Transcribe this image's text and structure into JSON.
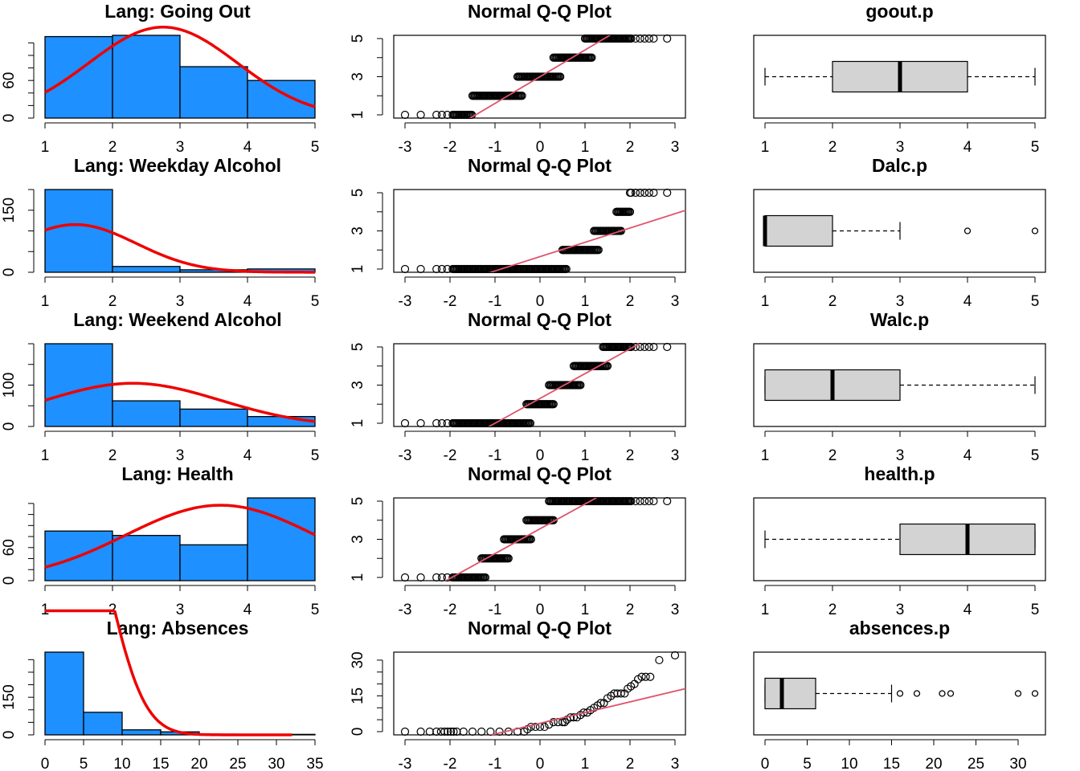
{
  "colors": {
    "hist_fill": "#1E90FF",
    "density_curve": "#EE0000",
    "qq_line": "#DF536B",
    "box_fill": "#D3D3D3"
  },
  "chart_data": [
    {
      "type": "bar",
      "title": "Lang: Going Out",
      "categories": [
        "1-2",
        "2-3",
        "3-4",
        "4-5"
      ],
      "bins": [
        1,
        2,
        3,
        4,
        5
      ],
      "values": [
        130,
        132,
        82,
        60
      ],
      "xlim": [
        1,
        5
      ],
      "ylim": [
        0,
        132
      ],
      "xticks": [
        "1",
        "2",
        "3",
        "4",
        "5"
      ],
      "yticks": [
        "0",
        "60"
      ],
      "density_curve": {
        "mean": 2.75,
        "sd": 1.1,
        "n": 400
      }
    },
    {
      "type": "scatter",
      "title": "Normal Q-Q Plot",
      "x_range": [
        -3,
        3
      ],
      "ylim": [
        1,
        5
      ],
      "xticks": [
        "-3",
        "-2",
        "-1",
        "0",
        "1",
        "2",
        "3"
      ],
      "yticks": [
        "1",
        "3",
        "5"
      ],
      "value_levels": [
        1,
        2,
        3,
        4,
        5
      ],
      "level_z_ranges": [
        [
          -3.0,
          -1.5
        ],
        [
          -1.5,
          -0.4
        ],
        [
          -0.5,
          0.45
        ],
        [
          0.3,
          1.15
        ],
        [
          1.0,
          3.0
        ]
      ],
      "reference_line": {
        "intercept": 3.0,
        "slope": 1.4
      }
    },
    {
      "type": "box",
      "title": "goout.p",
      "xlim": [
        1,
        5
      ],
      "xticks": [
        "1",
        "2",
        "3",
        "4",
        "5"
      ],
      "whisker_low": 1,
      "q1": 2,
      "median": 3,
      "q3": 4,
      "whisker_high": 5,
      "outliers": []
    },
    {
      "type": "bar",
      "title": "Lang: Weekday Alcohol",
      "categories": [
        "1-2",
        "2-3",
        "3-4",
        "4-5"
      ],
      "bins": [
        1,
        2,
        3,
        4,
        5
      ],
      "values": [
        200,
        14,
        6,
        8
      ],
      "xlim": [
        1,
        5
      ],
      "ylim": [
        0,
        200
      ],
      "xticks": [
        "1",
        "2",
        "3",
        "4",
        "5"
      ],
      "yticks": [
        "0",
        "150"
      ],
      "density_curve": {
        "mean": 1.45,
        "sd": 0.9,
        "n": 260
      }
    },
    {
      "type": "scatter",
      "title": "Normal Q-Q Plot",
      "x_range": [
        -3,
        3
      ],
      "ylim": [
        1,
        5
      ],
      "xticks": [
        "-3",
        "-2",
        "-1",
        "0",
        "1",
        "2",
        "3"
      ],
      "yticks": [
        "1",
        "3",
        "5"
      ],
      "value_levels": [
        1,
        2,
        3,
        4,
        5
      ],
      "level_z_ranges": [
        [
          -3.0,
          0.6
        ],
        [
          0.5,
          1.3
        ],
        [
          1.2,
          1.8
        ],
        [
          1.7,
          2.0
        ],
        [
          2.0,
          3.0
        ]
      ],
      "reference_line": {
        "intercept": 1.65,
        "slope": 0.75
      }
    },
    {
      "type": "box",
      "title": "Dalc.p",
      "xlim": [
        1,
        5
      ],
      "xticks": [
        "1",
        "2",
        "3",
        "4",
        "5"
      ],
      "whisker_low": 1,
      "q1": 1,
      "median": 1,
      "q3": 2,
      "whisker_high": 3,
      "outliers": [
        4,
        5
      ]
    },
    {
      "type": "bar",
      "title": "Lang: Weekend Alcohol",
      "categories": [
        "1-2",
        "2-3",
        "3-4",
        "4-5"
      ],
      "bins": [
        1,
        2,
        3,
        4,
        5
      ],
      "values": [
        200,
        62,
        42,
        24
      ],
      "xlim": [
        1,
        5
      ],
      "ylim": [
        0,
        200
      ],
      "xticks": [
        "1",
        "2",
        "3",
        "4",
        "5"
      ],
      "yticks": [
        "0",
        "100"
      ],
      "density_curve": {
        "mean": 2.3,
        "sd": 1.3,
        "n": 340
      }
    },
    {
      "type": "scatter",
      "title": "Normal Q-Q Plot",
      "x_range": [
        -3,
        3
      ],
      "ylim": [
        1,
        5
      ],
      "xticks": [
        "-3",
        "-2",
        "-1",
        "0",
        "1",
        "2",
        "3"
      ],
      "yticks": [
        "1",
        "3",
        "5"
      ],
      "value_levels": [
        1,
        2,
        3,
        4,
        5
      ],
      "level_z_ranges": [
        [
          -3.0,
          -0.2
        ],
        [
          -0.3,
          0.3
        ],
        [
          0.2,
          0.9
        ],
        [
          0.75,
          1.5
        ],
        [
          1.4,
          3.0
        ]
      ],
      "reference_line": {
        "intercept": 2.3,
        "slope": 1.3
      }
    },
    {
      "type": "box",
      "title": "Walc.p",
      "xlim": [
        1,
        5
      ],
      "xticks": [
        "1",
        "2",
        "3",
        "4",
        "5"
      ],
      "whisker_low": 1,
      "q1": 1,
      "median": 2,
      "q3": 3,
      "whisker_high": 5,
      "outliers": []
    },
    {
      "type": "bar",
      "title": "Lang: Health",
      "categories": [
        "1-2",
        "2-3",
        "3-4",
        "4-5"
      ],
      "bins": [
        1,
        2,
        3,
        4,
        5
      ],
      "values": [
        90,
        82,
        65,
        150
      ],
      "xlim": [
        1,
        5
      ],
      "ylim": [
        0,
        150
      ],
      "xticks": [
        "1",
        "2",
        "3",
        "4",
        "5"
      ],
      "yticks": [
        "0",
        "60"
      ],
      "density_curve": {
        "mean": 3.6,
        "sd": 1.4,
        "n": 480
      }
    },
    {
      "type": "scatter",
      "title": "Normal Q-Q Plot",
      "x_range": [
        -3,
        3
      ],
      "ylim": [
        1,
        5
      ],
      "xticks": [
        "-3",
        "-2",
        "-1",
        "0",
        "1",
        "2",
        "3"
      ],
      "yticks": [
        "1",
        "3",
        "5"
      ],
      "value_levels": [
        1,
        2,
        3,
        4,
        5
      ],
      "level_z_ranges": [
        [
          -3.0,
          -1.2
        ],
        [
          -1.3,
          -0.7
        ],
        [
          -0.8,
          -0.2
        ],
        [
          -0.3,
          0.3
        ],
        [
          0.2,
          3.0
        ]
      ],
      "reference_line": {
        "intercept": 3.55,
        "slope": 1.3
      }
    },
    {
      "type": "box",
      "title": "health.p",
      "xlim": [
        1,
        5
      ],
      "xticks": [
        "1",
        "2",
        "3",
        "4",
        "5"
      ],
      "whisker_low": 1,
      "q1": 3,
      "median": 4,
      "q3": 5,
      "whisker_high": 5,
      "outliers": []
    },
    {
      "type": "bar",
      "title": "Lang: Absences",
      "categories": [
        "0-5",
        "5-10",
        "10-15",
        "15-20",
        "20-25",
        "25-30",
        "30-35"
      ],
      "bins": [
        0,
        5,
        10,
        15,
        20,
        25,
        30,
        35
      ],
      "values": [
        330,
        90,
        20,
        12,
        3,
        1,
        2
      ],
      "xlim": [
        0,
        35
      ],
      "ylim": [
        0,
        330
      ],
      "xticks": [
        "0",
        "5",
        "10",
        "15",
        "20",
        "25",
        "30",
        "35"
      ],
      "yticks": [
        "0",
        "150"
      ],
      "density_curve": {
        "mean": 3.6,
        "sd": 4.6,
        "n": 2300,
        "x_max": 32
      }
    },
    {
      "type": "scatter",
      "title": "Normal Q-Q Plot",
      "x_range": [
        -3,
        3
      ],
      "ylim": [
        0,
        32
      ],
      "xticks": [
        "-3",
        "-2",
        "-1",
        "0",
        "1",
        "2",
        "3"
      ],
      "yticks": [
        "0",
        "15",
        "30"
      ],
      "points": [
        [
          -3.0,
          0
        ],
        [
          -2.65,
          0
        ],
        [
          -2.45,
          0
        ],
        [
          -2.3,
          0
        ],
        [
          -2.2,
          0
        ],
        [
          -2.12,
          0
        ],
        [
          -2.05,
          0
        ],
        [
          -1.98,
          0
        ],
        [
          -1.92,
          0
        ],
        [
          -1.85,
          0
        ],
        [
          -1.7,
          0
        ],
        [
          -1.5,
          0
        ],
        [
          -1.3,
          0
        ],
        [
          -1.1,
          0
        ],
        [
          -0.9,
          0
        ],
        [
          -0.7,
          0
        ],
        [
          -0.5,
          0
        ],
        [
          -0.35,
          0
        ],
        [
          -0.28,
          1
        ],
        [
          -0.2,
          2
        ],
        [
          -0.1,
          2
        ],
        [
          0.0,
          2
        ],
        [
          0.1,
          2
        ],
        [
          0.2,
          3
        ],
        [
          0.3,
          4
        ],
        [
          0.4,
          4
        ],
        [
          0.5,
          4
        ],
        [
          0.55,
          4
        ],
        [
          0.6,
          5
        ],
        [
          0.68,
          6
        ],
        [
          0.75,
          6
        ],
        [
          0.82,
          6
        ],
        [
          0.9,
          7
        ],
        [
          0.97,
          8
        ],
        [
          1.05,
          8
        ],
        [
          1.12,
          9
        ],
        [
          1.2,
          10
        ],
        [
          1.28,
          11
        ],
        [
          1.35,
          12
        ],
        [
          1.42,
          12
        ],
        [
          1.5,
          14
        ],
        [
          1.58,
          15
        ],
        [
          1.65,
          16
        ],
        [
          1.72,
          16
        ],
        [
          1.8,
          16
        ],
        [
          1.88,
          16
        ],
        [
          1.95,
          18
        ],
        [
          2.02,
          19
        ],
        [
          2.1,
          20
        ],
        [
          2.18,
          22
        ],
        [
          2.26,
          23
        ],
        [
          2.35,
          23
        ],
        [
          2.45,
          23
        ],
        [
          2.65,
          30
        ],
        [
          3.0,
          32
        ]
      ],
      "reference_line": {
        "intercept": 3.5,
        "slope": 4.5
      }
    },
    {
      "type": "box",
      "title": "absences.p",
      "xlim": [
        0,
        32
      ],
      "xticks": [
        "0",
        "5",
        "10",
        "15",
        "20",
        "25",
        "30"
      ],
      "whisker_low": 0,
      "q1": 0,
      "median": 2,
      "q3": 6,
      "whisker_high": 15,
      "outliers": [
        16,
        18,
        21,
        22,
        30,
        32
      ]
    }
  ]
}
